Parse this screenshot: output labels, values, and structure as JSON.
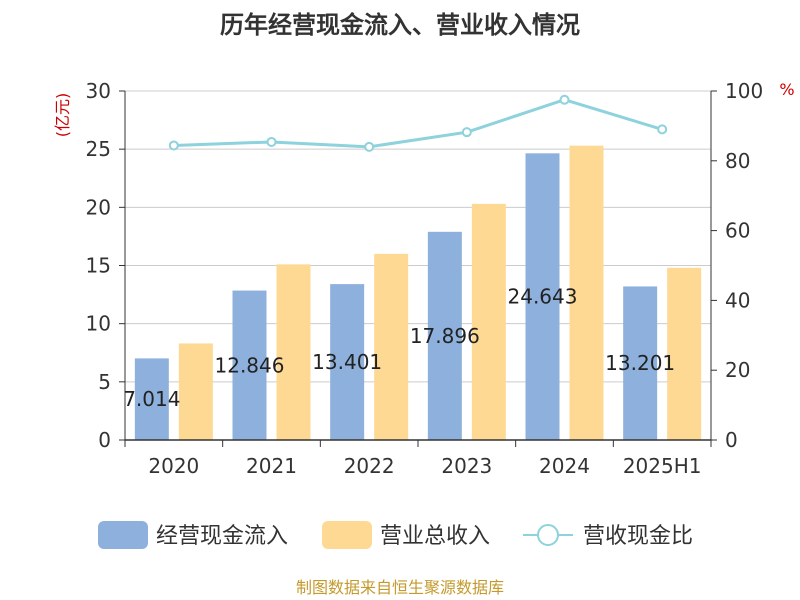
{
  "chart_data": {
    "type": "bar",
    "title": "历年经营现金流入、营业收入情况",
    "categories": [
      "2020",
      "2021",
      "2022",
      "2023",
      "2024",
      "2025H1"
    ],
    "series": [
      {
        "name": "经营现金流入",
        "kind": "bar",
        "axis": "left",
        "color": "#8eb0dd",
        "values": [
          7.014,
          12.846,
          13.401,
          17.896,
          24.643,
          13.201
        ],
        "labels": [
          "7.014",
          "12.846",
          "13.401",
          "17.896",
          "24.643",
          "13.201"
        ]
      },
      {
        "name": "营业总收入",
        "kind": "bar",
        "axis": "left",
        "color": "#fdd994",
        "values": [
          8.3,
          15.1,
          16.0,
          20.3,
          25.3,
          14.8
        ]
      },
      {
        "name": "营收现金比",
        "kind": "line",
        "axis": "right",
        "color": "#8dd2dc",
        "values": [
          84.4,
          85.4,
          84.0,
          88.2,
          97.5,
          89.0
        ]
      }
    ],
    "y_left": {
      "unit": "(亿元)",
      "ylim": [
        0,
        30
      ],
      "ticks": [
        "0",
        "5",
        "10",
        "15",
        "20",
        "25",
        "30"
      ]
    },
    "y_right": {
      "unit": "%",
      "ylim": [
        0,
        100
      ],
      "ticks": [
        "0",
        "20",
        "40",
        "60",
        "80",
        "100"
      ]
    },
    "grid": true,
    "legend_position": "bottom"
  },
  "source_note": "制图数据来自恒生聚源数据库"
}
